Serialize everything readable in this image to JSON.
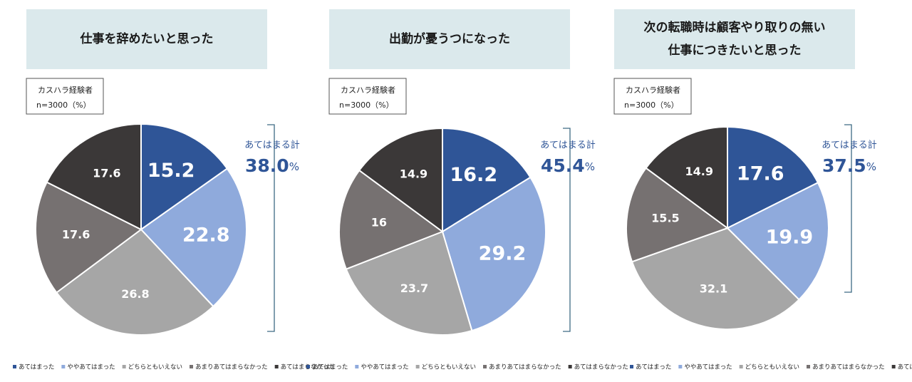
{
  "chart_data": [
    {
      "type": "pie",
      "title_lines": [
        "仕事を辞めたいと思った"
      ],
      "note_lines": [
        "カスハラ経験者",
        "n=3000（%）"
      ],
      "categories": [
        "あてはまった",
        "ややあてはまった",
        "どちらともいえない",
        "あまりあてはまらなかった",
        "あてはまらなかった"
      ],
      "values": [
        15.2,
        22.8,
        26.8,
        17.6,
        17.6
      ],
      "colors": [
        "#2f5597",
        "#8faadc",
        "#a6a6a6",
        "#767171",
        "#3b3838"
      ],
      "total_label": "あてはまる計",
      "total_value": "38.0",
      "total_unit": "%"
    },
    {
      "type": "pie",
      "title_lines": [
        "出勤が憂うつになった"
      ],
      "note_lines": [
        "カスハラ経験者",
        "n=3000（%）"
      ],
      "categories": [
        "あてはまった",
        "ややあてはまった",
        "どちらともいえない",
        "あまりあてはまらなかった",
        "あてはまらなかった"
      ],
      "values": [
        16.2,
        29.2,
        23.7,
        16.0,
        14.9
      ],
      "colors": [
        "#2f5597",
        "#8faadc",
        "#a6a6a6",
        "#767171",
        "#3b3838"
      ],
      "total_label": "あてはまる計",
      "total_value": "45.4",
      "total_unit": "%"
    },
    {
      "type": "pie",
      "title_lines": [
        "次の転職時は顧客やり取りの無い",
        "仕事につきたいと思った"
      ],
      "note_lines": [
        "カスハラ経験者",
        "n=3000（%）"
      ],
      "categories": [
        "あてはまった",
        "ややあてはまった",
        "どちらともいえない",
        "あまりあてはまらなかった",
        "あてはまらなかった"
      ],
      "values": [
        17.6,
        19.9,
        32.1,
        15.5,
        14.9
      ],
      "colors": [
        "#2f5597",
        "#8faadc",
        "#a6a6a6",
        "#767171",
        "#3b3838"
      ],
      "total_label": "あてはまる計",
      "total_value": "37.5",
      "total_unit": "%"
    }
  ]
}
